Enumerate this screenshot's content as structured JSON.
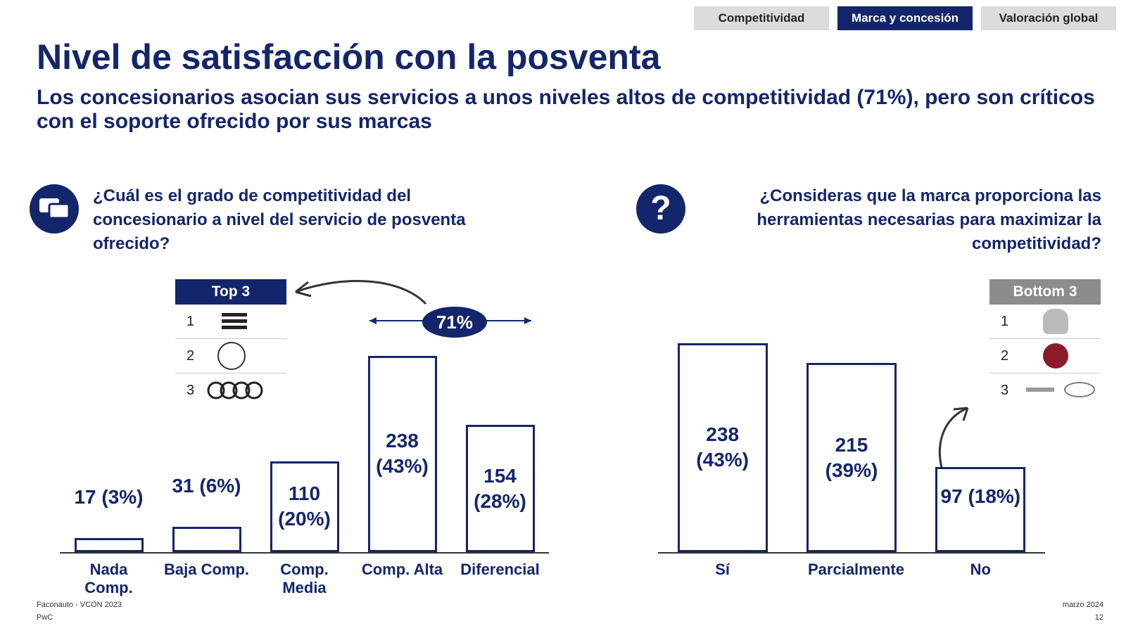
{
  "nav": {
    "tabs": [
      "Competitividad",
      "Marca y concesión",
      "Valoración global"
    ],
    "active": 1
  },
  "title": "Nivel de satisfacción con la posventa",
  "subtitle": "Los concesionarios asocian sus servicios a unos niveles altos de competitividad (71%), pero son críticos con el soporte ofrecido por sus marcas",
  "chart_data": [
    {
      "type": "bar",
      "question": "¿Cuál es el grado de competitividad del concesionario a nivel del servicio de posventa ofrecido?",
      "categories": [
        "Nada Comp.",
        "Baja Comp.",
        "Comp. Media",
        "Comp. Alta",
        "Diferencial"
      ],
      "values": [
        17,
        31,
        110,
        238,
        154
      ],
      "value_labels": [
        "17 (3%)",
        "31 (6%)",
        "110 (20%)",
        "238 (43%)",
        "154 (28%)"
      ],
      "color": "#13256b",
      "ylim": [
        0,
        260
      ],
      "annotation": "71%",
      "ranking": {
        "title": "Top 3",
        "ranks": [
          "1",
          "2",
          "3"
        ]
      }
    },
    {
      "type": "bar",
      "question": "¿Consideras que la marca proporciona las herramientas necesarias para maximizar la competitividad?",
      "categories": [
        "Sí",
        "Parcialmente",
        "No"
      ],
      "values": [
        238,
        215,
        97
      ],
      "value_labels": [
        "238 (43%)",
        "215 (39%)",
        "97 (18%)"
      ],
      "color": "#13256b",
      "ylim": [
        0,
        240
      ],
      "ranking": {
        "title": "Bottom 3",
        "ranks": [
          "1",
          "2",
          "3"
        ]
      }
    }
  ],
  "footer": {
    "source": "Faconauto - VCON 2023",
    "company": "PwC",
    "date": "marzo 2024",
    "page": "12"
  }
}
